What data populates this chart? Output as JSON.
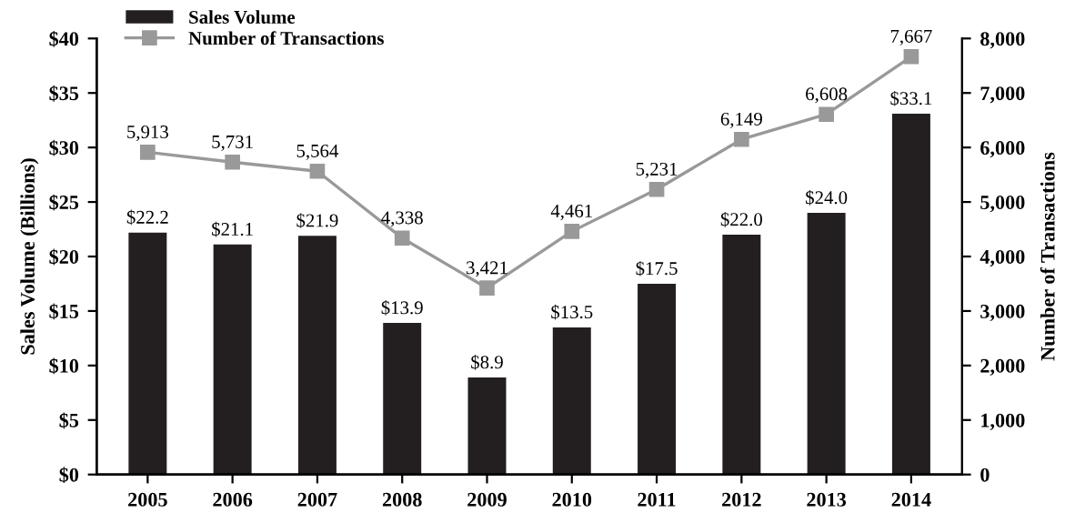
{
  "chart_data": {
    "type": "bar",
    "categories": [
      "2005",
      "2006",
      "2007",
      "2008",
      "2009",
      "2010",
      "2011",
      "2012",
      "2013",
      "2014"
    ],
    "ylabel": "Sales Volume (Billions)",
    "y2label": "Number of Transactions",
    "ylim": [
      0,
      40
    ],
    "yticks": [
      {
        "value": 0,
        "label": "$0"
      },
      {
        "value": 5,
        "label": "$5"
      },
      {
        "value": 10,
        "label": "$10"
      },
      {
        "value": 15,
        "label": "$15"
      },
      {
        "value": 20,
        "label": "$20"
      },
      {
        "value": 25,
        "label": "$25"
      },
      {
        "value": 30,
        "label": "$30"
      },
      {
        "value": 35,
        "label": "$35"
      },
      {
        "value": 40,
        "label": "$40"
      }
    ],
    "y2lim": [
      0,
      8000
    ],
    "y2ticks": [
      0,
      {
        "value": 1000,
        "label": "1,000"
      },
      {
        "value": 2000,
        "label": "2,000"
      },
      {
        "value": 3000,
        "label": "3,000"
      },
      {
        "value": 4000,
        "label": "4,000"
      },
      {
        "value": 5000,
        "label": "5,000"
      },
      {
        "value": 6000,
        "label": "6,000"
      },
      {
        "value": 7000,
        "label": "7,000"
      },
      {
        "value": 8000,
        "label": "8,000"
      }
    ],
    "series": [
      {
        "name": "Sales Volume",
        "color": "#231f20",
        "values": [
          22.2,
          21.1,
          21.9,
          13.9,
          8.9,
          13.5,
          17.5,
          22.0,
          24.0,
          33.1
        ],
        "value_labels": [
          "$22.2",
          "$21.1",
          "$21.9",
          "$13.9",
          "$8.9",
          "$13.5",
          "$17.5",
          "$22.0",
          "$24.0",
          "$33.1"
        ]
      },
      {
        "name": "Number of Transactions",
        "type": "line",
        "axis": "y2",
        "color": "#999999",
        "marker": "square",
        "values": [
          5913,
          5731,
          5564,
          4338,
          3421,
          4461,
          5231,
          6149,
          6608,
          7667
        ],
        "value_labels": [
          "5,913",
          "5,731",
          "5,564",
          "4,338",
          "3,421",
          "4,461",
          "5,231",
          "6,149",
          "6,608",
          "7,667"
        ]
      }
    ],
    "legend": "top left",
    "grid": false
  }
}
